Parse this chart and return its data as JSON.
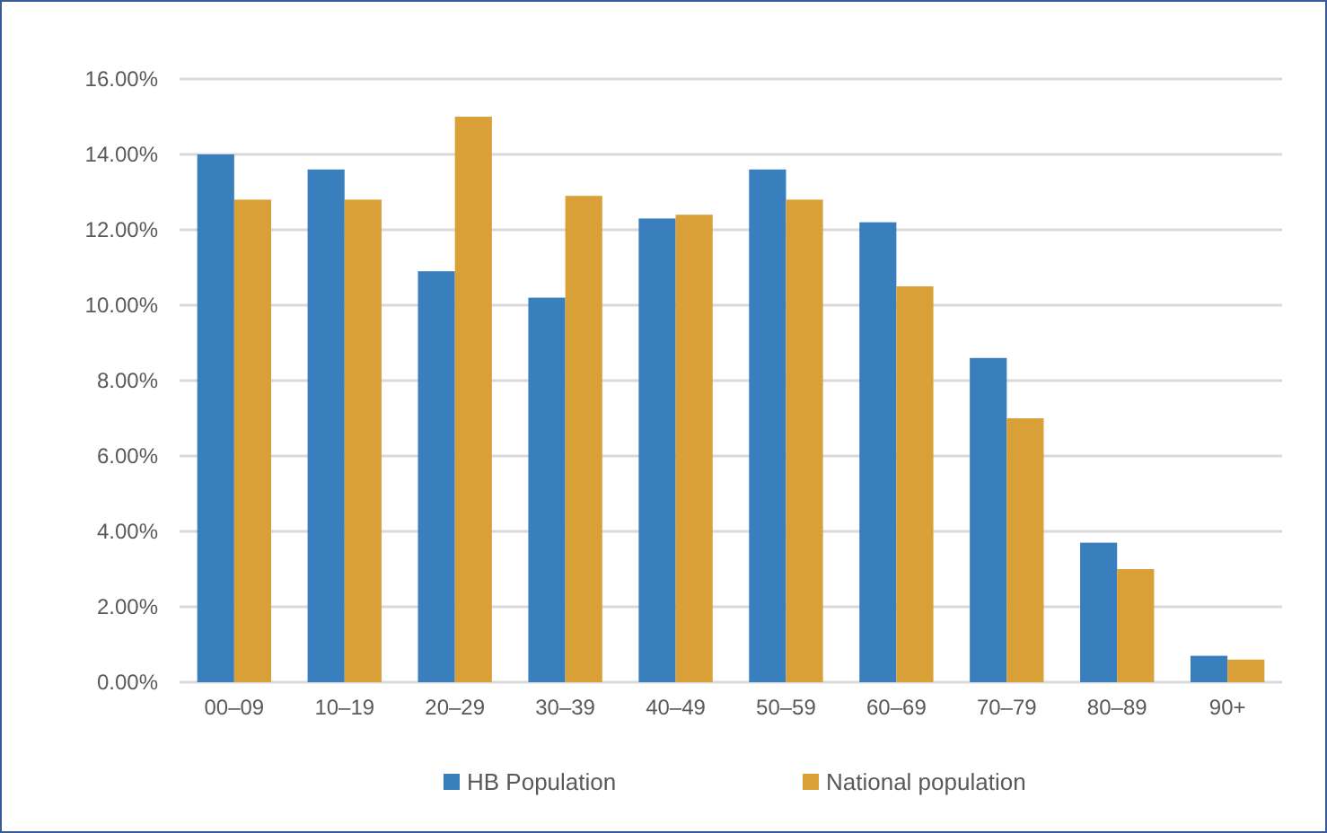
{
  "chart_data": {
    "type": "bar",
    "categories": [
      "00–09",
      "10–19",
      "20–29",
      "30–39",
      "40–49",
      "50–59",
      "60–69",
      "70–79",
      "80–89",
      "90+"
    ],
    "series": [
      {
        "name": "HB Population",
        "color": "#3a7fbd",
        "values": [
          14.0,
          13.6,
          10.9,
          10.2,
          12.3,
          13.6,
          12.2,
          8.6,
          3.7,
          0.7
        ]
      },
      {
        "name": "National population",
        "color": "#d9a038",
        "values": [
          12.8,
          12.8,
          15.0,
          12.9,
          12.4,
          12.8,
          10.5,
          7.0,
          3.0,
          0.6
        ]
      }
    ],
    "ylim": [
      0,
      16
    ],
    "yticks": [
      {
        "value": 0,
        "label": "0.00%"
      },
      {
        "value": 2,
        "label": "2.00%"
      },
      {
        "value": 4,
        "label": "4.00%"
      },
      {
        "value": 6,
        "label": "6.00%"
      },
      {
        "value": 8,
        "label": "8.00%"
      },
      {
        "value": 10,
        "label": "10.00%"
      },
      {
        "value": 12,
        "label": "12.00%"
      },
      {
        "value": 14,
        "label": "14.00%"
      },
      {
        "value": 16,
        "label": "16.00%"
      }
    ],
    "grid": "y",
    "legend": "bottom"
  }
}
